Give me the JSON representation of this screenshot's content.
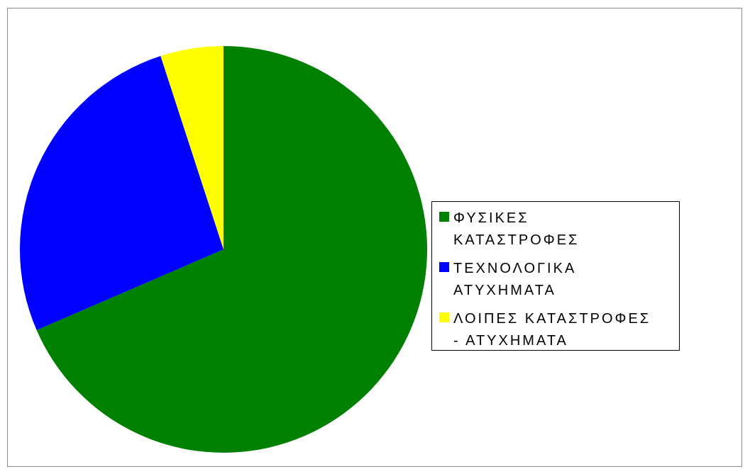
{
  "chart_data": {
    "type": "pie",
    "start_angle_deg": 0,
    "direction": "clockwise",
    "slices": [
      {
        "label": "ΦΥΣΙΚΕΣ\nΚΑΤΑΣΤΡΟΦΕΣ",
        "value": 68.5,
        "color": "#008000"
      },
      {
        "label": "ΤΕΧΝΟΛΟΓΙΚΑ\nΑΤΥΧΗΜΑΤΑ",
        "value": 26.5,
        "color": "#0000ff"
      },
      {
        "label": "ΛΟΙΠΕΣ ΚΑΤΑΣΤΡΟΦΕΣ\n- ΑΤΥΧΗΜΑΤΑ",
        "value": 5.0,
        "color": "#ffff00"
      }
    ],
    "legend_position": "right",
    "title": ""
  }
}
